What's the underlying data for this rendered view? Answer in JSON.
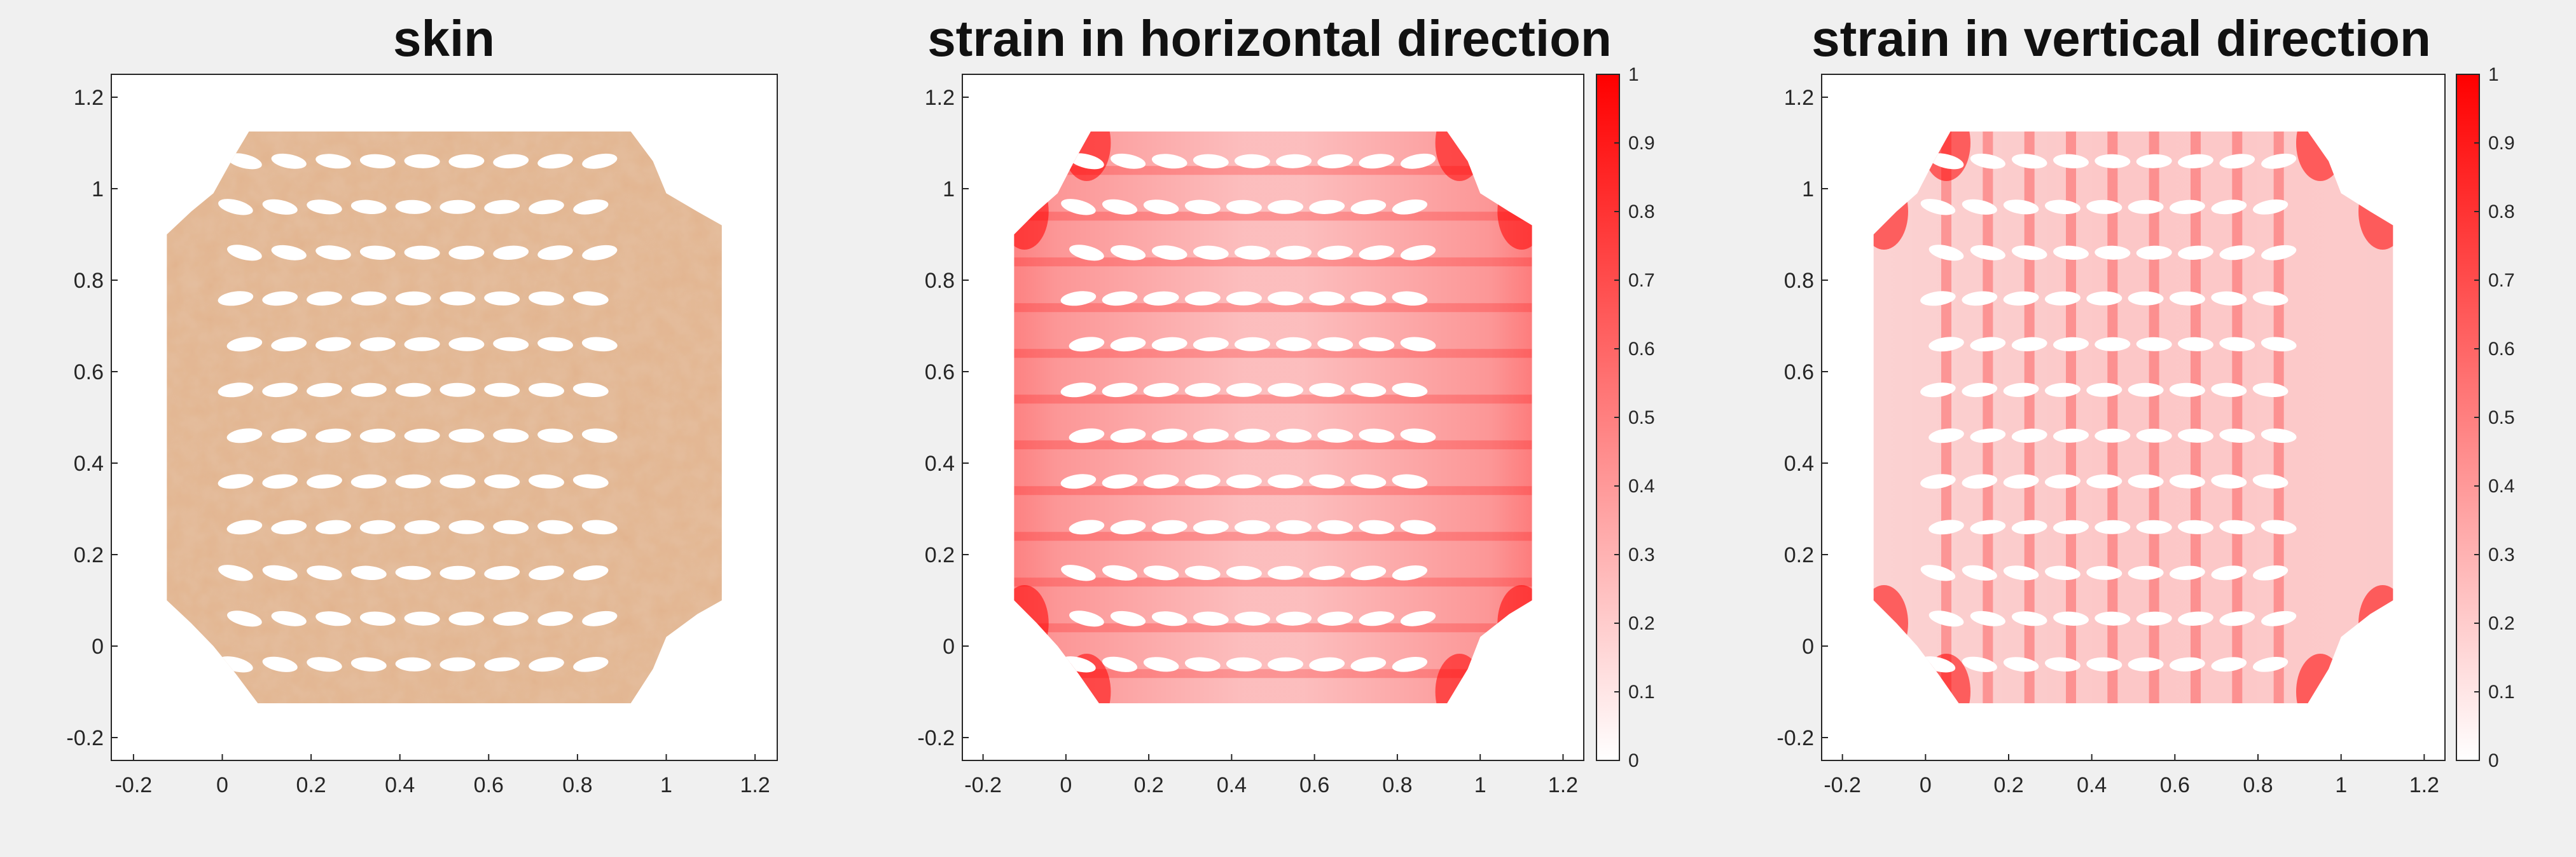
{
  "figure": {
    "background": "#f0f0f0",
    "axes_background": "#ffffff",
    "skin_color": "#e2b48e",
    "strain_max_color": "#ff0000",
    "strain_min_color": "#ffffff"
  },
  "chart_data": [
    {
      "type": "heatmap",
      "title": "skin",
      "xlabel": "",
      "ylabel": "",
      "xlim": [
        -0.25,
        1.25
      ],
      "ylim": [
        -0.25,
        1.25
      ],
      "xticks": [
        -0.2,
        0,
        0.2,
        0.4,
        0.6,
        0.8,
        1,
        1.2
      ],
      "yticks": [
        -0.2,
        0,
        0.2,
        0.4,
        0.6,
        0.8,
        1,
        1.2
      ],
      "xtick_labels": [
        "-0.2",
        "0",
        "0.2",
        "0.4",
        "0.6",
        "0.8",
        "1",
        "1.2"
      ],
      "ytick_labels": [
        "-0.2",
        "0",
        "0.2",
        "0.4",
        "0.6",
        "0.8",
        "1",
        "1.2"
      ],
      "field": "skin texture",
      "grid": false,
      "colorbar": null,
      "hole_grid": {
        "rows": 12,
        "cols": 9,
        "x_range": [
          -0.1,
          1.1
        ],
        "y_range": [
          -0.1,
          1.1
        ]
      }
    },
    {
      "type": "heatmap",
      "title": "strain in horizontal direction",
      "xlabel": "",
      "ylabel": "",
      "xlim": [
        -0.25,
        1.25
      ],
      "ylim": [
        -0.25,
        1.25
      ],
      "xticks": [
        -0.2,
        0,
        0.2,
        0.4,
        0.6,
        0.8,
        1,
        1.2
      ],
      "yticks": [
        -0.2,
        0,
        0.2,
        0.4,
        0.6,
        0.8,
        1,
        1.2
      ],
      "xtick_labels": [
        "-0.2",
        "0",
        "0.2",
        "0.4",
        "0.6",
        "0.8",
        "1",
        "1.2"
      ],
      "ytick_labels": [
        "-0.2",
        "0",
        "0.2",
        "0.4",
        "0.6",
        "0.8",
        "1",
        "1.2"
      ],
      "field": "horizontal strain",
      "grid": false,
      "colorbar": {
        "range": [
          0,
          1
        ],
        "ticks": [
          0,
          0.1,
          0.2,
          0.3,
          0.4,
          0.5,
          0.6,
          0.7,
          0.8,
          0.9,
          1
        ],
        "tick_labels": [
          "0",
          "0.1",
          "0.2",
          "0.3",
          "0.4",
          "0.5",
          "0.6",
          "0.7",
          "0.8",
          "0.9",
          "1"
        ],
        "colormap": "white-to-red"
      },
      "hole_grid": {
        "rows": 12,
        "cols": 9,
        "x_range": [
          -0.1,
          1.1
        ],
        "y_range": [
          -0.1,
          1.1
        ]
      }
    },
    {
      "type": "heatmap",
      "title": "strain in vertical direction",
      "xlabel": "",
      "ylabel": "",
      "xlim": [
        -0.25,
        1.25
      ],
      "ylim": [
        -0.25,
        1.25
      ],
      "xticks": [
        -0.2,
        0,
        0.2,
        0.4,
        0.6,
        0.8,
        1,
        1.2
      ],
      "yticks": [
        -0.2,
        0,
        0.2,
        0.4,
        0.6,
        0.8,
        1,
        1.2
      ],
      "xtick_labels": [
        "-0.2",
        "0",
        "0.2",
        "0.4",
        "0.6",
        "0.8",
        "1",
        "1.2"
      ],
      "ytick_labels": [
        "-0.2",
        "0",
        "0.2",
        "0.4",
        "0.6",
        "0.8",
        "1",
        "1.2"
      ],
      "field": "vertical strain",
      "grid": false,
      "colorbar": {
        "range": [
          0,
          1
        ],
        "ticks": [
          0,
          0.1,
          0.2,
          0.3,
          0.4,
          0.5,
          0.6,
          0.7,
          0.8,
          0.9,
          1
        ],
        "tick_labels": [
          "0",
          "0.1",
          "0.2",
          "0.3",
          "0.4",
          "0.5",
          "0.6",
          "0.7",
          "0.8",
          "0.9",
          "1"
        ],
        "colormap": "white-to-red"
      },
      "hole_grid": {
        "rows": 12,
        "cols": 9,
        "x_range": [
          -0.1,
          1.1
        ],
        "y_range": [
          -0.1,
          1.1
        ]
      }
    }
  ]
}
